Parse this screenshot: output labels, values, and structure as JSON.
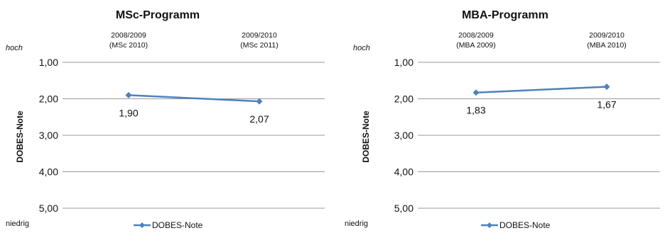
{
  "chart_data": [
    {
      "type": "line",
      "title": "MSc-Programm",
      "categories": [
        [
          "2008/2009",
          "(MSc 2010)"
        ],
        [
          "2009/2010",
          "(MSc 2011)"
        ]
      ],
      "ylabel": "DOBES-Note",
      "ylim": [
        1,
        5
      ],
      "y_reversed": true,
      "y_ticks": [
        "1,00",
        "2,00",
        "3,00",
        "4,00",
        "5,00"
      ],
      "y_top_label": "hoch",
      "y_bottom_label": "niedrig",
      "grid": true,
      "legend_position": "bottom",
      "series": [
        {
          "name": "DOBES-Note",
          "values": [
            1.9,
            2.07
          ],
          "labels": [
            "1,90",
            "2,07"
          ],
          "color": "#4F81BD"
        }
      ]
    },
    {
      "type": "line",
      "title": "MBA-Programm",
      "categories": [
        [
          "2008/2009",
          "(MBA 2009)"
        ],
        [
          "2009/2010",
          "(MBA 2010)"
        ]
      ],
      "ylabel": "DOBES-Note",
      "ylim": [
        1,
        5
      ],
      "y_reversed": true,
      "y_ticks": [
        "1,00",
        "2,00",
        "3,00",
        "4,00",
        "5,00"
      ],
      "y_top_label": "hoch",
      "y_bottom_label": "niedrig",
      "grid": true,
      "legend_position": "bottom",
      "series": [
        {
          "name": "DOBES-Note",
          "values": [
            1.83,
            1.67
          ],
          "labels": [
            "1,83",
            "1,67"
          ],
          "color": "#4F81BD"
        }
      ]
    }
  ]
}
